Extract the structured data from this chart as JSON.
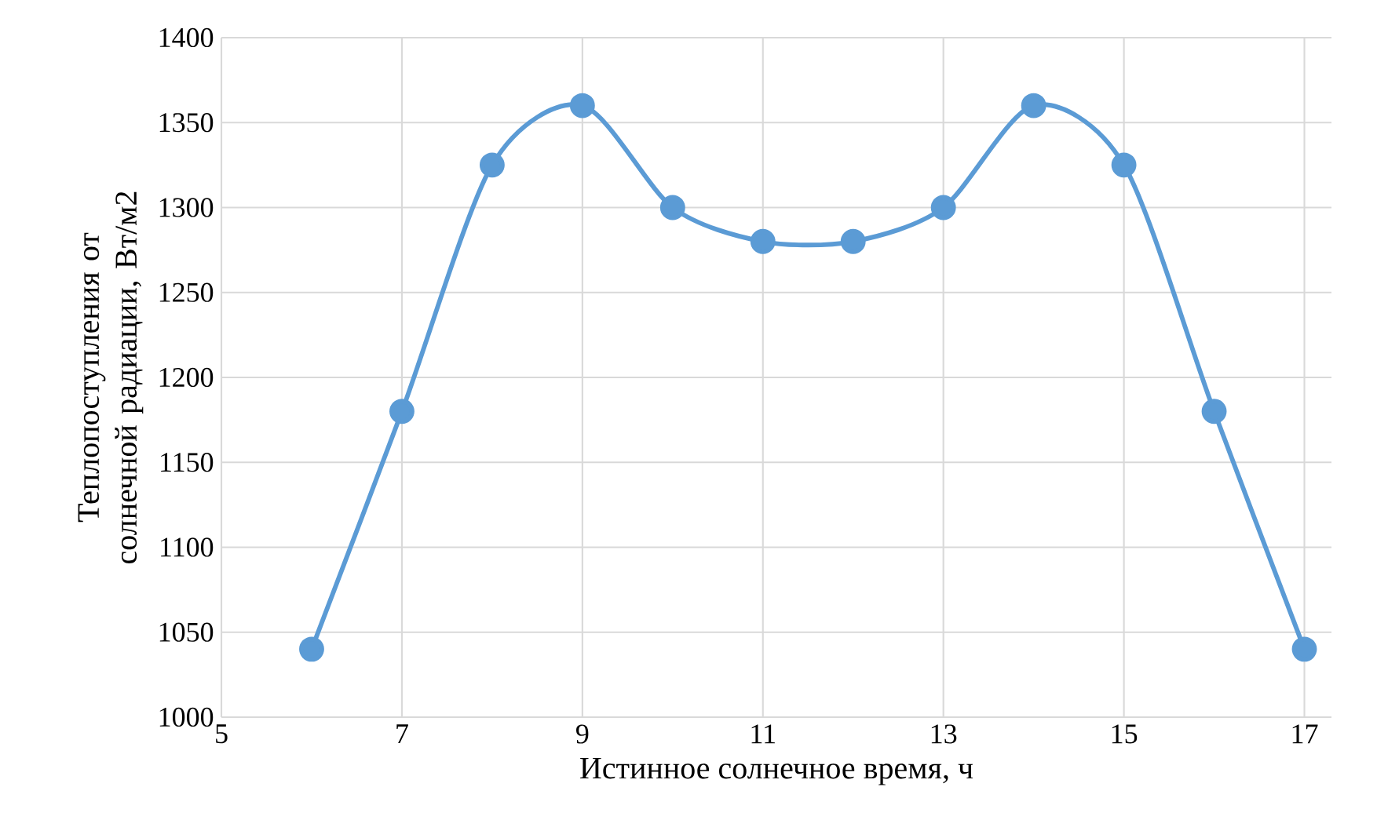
{
  "chart_data": {
    "type": "line",
    "xlabel": "Истинное солнечное время, ч",
    "ylabel": "Теплопоступления от солнечной радиации, Вт/м2",
    "x": [
      6,
      7,
      8,
      9,
      10,
      11,
      12,
      13,
      14,
      15,
      16,
      17
    ],
    "series": [
      {
        "color": "#5b9bd5",
        "values": [
          1040,
          1180,
          1325,
          1360,
          1300,
          1280,
          1280,
          1300,
          1360,
          1325,
          1180,
          1040
        ]
      }
    ],
    "xlim": [
      5,
      17.3
    ],
    "ylim": [
      1000,
      1400
    ],
    "xticks": [
      5,
      7,
      9,
      11,
      13,
      15,
      17
    ],
    "yticks": [
      1000,
      1050,
      1100,
      1150,
      1200,
      1250,
      1300,
      1350,
      1400
    ],
    "grid": true,
    "marker": "circle",
    "line_style": "solid"
  }
}
